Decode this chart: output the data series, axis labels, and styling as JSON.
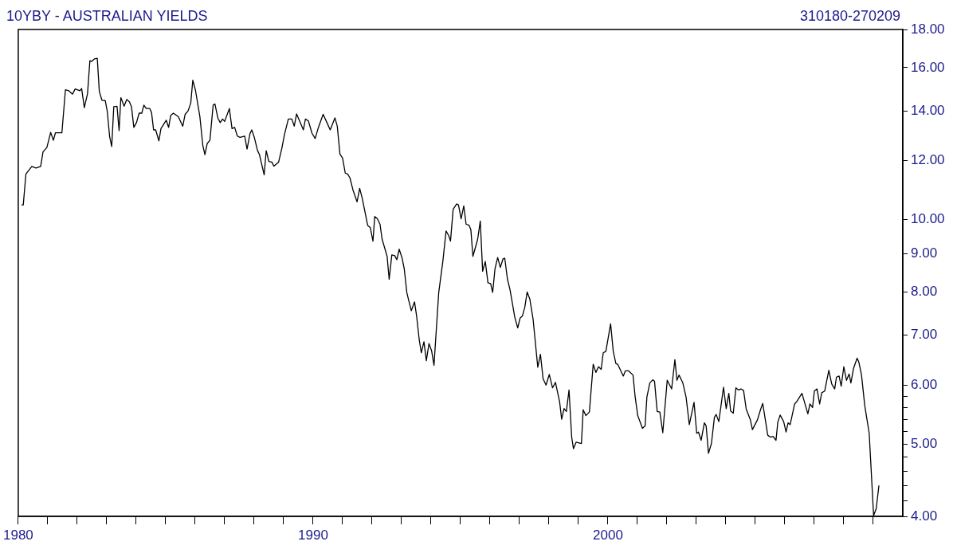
{
  "chart_data": {
    "type": "line",
    "title": "10YBY - AUSTRALIAN YIELDS",
    "subtitle": "310180-270209",
    "color": "#000000",
    "log": "y",
    "xlim": [
      1980,
      2010
    ],
    "xticks": [
      1980,
      {
        "value": 1981,
        "label": null
      },
      {
        "value": 1982,
        "label": null
      },
      {
        "value": 1983,
        "label": null
      },
      {
        "value": 1984,
        "label": null
      },
      {
        "value": 1985,
        "label": null
      },
      {
        "value": 1986,
        "label": null
      },
      {
        "value": 1987,
        "label": null
      },
      {
        "value": 1988,
        "label": null
      },
      {
        "value": 1989,
        "label": null
      },
      1990,
      {
        "value": 1991,
        "label": null
      },
      {
        "value": 1992,
        "label": null
      },
      {
        "value": 1993,
        "label": null
      },
      {
        "value": 1994,
        "label": null
      },
      {
        "value": 1995,
        "label": null
      },
      {
        "value": 1996,
        "label": null
      },
      {
        "value": 1997,
        "label": null
      },
      {
        "value": 1998,
        "label": null
      },
      {
        "value": 1999,
        "label": null
      },
      2000,
      {
        "value": 2001,
        "label": null
      },
      {
        "value": 2002,
        "label": null
      },
      {
        "value": 2003,
        "label": null
      },
      {
        "value": 2004,
        "label": null
      },
      {
        "value": 2005,
        "label": null
      },
      {
        "value": 2006,
        "label": null
      },
      {
        "value": 2007,
        "label": null
      },
      {
        "value": 2008,
        "label": null
      },
      {
        "value": 2009,
        "label": null
      }
    ],
    "ylim": [
      4,
      18
    ],
    "yticks": [
      {
        "value": 4,
        "label": "4.00"
      },
      {
        "value": 4.2,
        "label": null
      },
      {
        "value": 4.4,
        "label": null
      },
      {
        "value": 4.6,
        "label": null
      },
      {
        "value": 4.8,
        "label": null
      },
      {
        "value": 5,
        "label": "5.00"
      },
      {
        "value": 5.2,
        "label": null
      },
      {
        "value": 5.4,
        "label": null
      },
      {
        "value": 5.6,
        "label": null
      },
      {
        "value": 5.8,
        "label": null
      },
      {
        "value": 6,
        "label": "6.00"
      },
      {
        "value": 7,
        "label": "7.00"
      },
      {
        "value": 8,
        "label": "8.00"
      },
      {
        "value": 9,
        "label": "9.00"
      },
      {
        "value": 10,
        "label": "10.00"
      },
      {
        "value": 12,
        "label": "12.00"
      },
      {
        "value": 14,
        "label": "14.00"
      },
      {
        "value": 16,
        "label": "16.00"
      },
      {
        "value": 18,
        "label": "18.00"
      }
    ],
    "x": [
      1980.11,
      1980.17,
      1980.26,
      1980.46,
      1980.6,
      1980.76,
      1980.84,
      1980.97,
      1981.1,
      1981.19,
      1981.26,
      1981.48,
      1981.6,
      1981.71,
      1981.84,
      1981.93,
      1982.09,
      1982.15,
      1982.24,
      1982.35,
      1982.43,
      1982.48,
      1982.59,
      1982.68,
      1982.75,
      1982.84,
      1982.95,
      1983.02,
      1983.1,
      1983.17,
      1983.24,
      1983.35,
      1983.42,
      1983.48,
      1983.59,
      1983.68,
      1983.77,
      1983.84,
      1983.92,
      1984.01,
      1984.1,
      1984.19,
      1984.26,
      1984.34,
      1984.46,
      1984.52,
      1984.59,
      1984.66,
      1984.77,
      1984.84,
      1985.02,
      1985.1,
      1985.17,
      1985.26,
      1985.43,
      1985.58,
      1985.66,
      1985.76,
      1985.85,
      1985.92,
      1986.01,
      1986.16,
      1986.26,
      1986.33,
      1986.41,
      1986.5,
      1986.61,
      1986.67,
      1986.77,
      1986.85,
      1986.93,
      1987.0,
      1987.16,
      1987.25,
      1987.34,
      1987.43,
      1987.52,
      1987.68,
      1987.76,
      1987.86,
      1987.92,
      1988.01,
      1988.11,
      1988.18,
      1988.34,
      1988.41,
      1988.5,
      1988.6,
      1988.67,
      1988.83,
      1988.94,
      1989.03,
      1989.16,
      1989.28,
      1989.36,
      1989.44,
      1989.67,
      1989.74,
      1989.84,
      1989.96,
      1990.07,
      1990.18,
      1990.34,
      1990.47,
      1990.58,
      1990.74,
      1990.82,
      1990.91,
      1991.0,
      1991.09,
      1991.17,
      1991.25,
      1991.35,
      1991.49,
      1991.58,
      1991.67,
      1991.85,
      1991.94,
      1992.03,
      1992.09,
      1992.18,
      1992.27,
      1992.34,
      1992.51,
      1992.58,
      1992.67,
      1992.77,
      1992.84,
      1992.92,
      1993.02,
      1993.09,
      1993.18,
      1993.24,
      1993.33,
      1993.44,
      1993.51,
      1993.6,
      1993.67,
      1993.76,
      1993.84,
      1993.93,
      1994.02,
      1994.1,
      1994.26,
      1994.4,
      1994.51,
      1994.6,
      1994.66,
      1994.75,
      1994.87,
      1994.93,
      1995.02,
      1995.11,
      1995.19,
      1995.29,
      1995.35,
      1995.42,
      1995.58,
      1995.67,
      1995.75,
      1995.84,
      1995.93,
      1996.02,
      1996.09,
      1996.17,
      1996.26,
      1996.35,
      1996.44,
      1996.5,
      1996.59,
      1996.68,
      1996.84,
      1996.94,
      1997.02,
      1997.1,
      1997.18,
      1997.26,
      1997.35,
      1997.46,
      1997.62,
      1997.71,
      1997.8,
      1997.9,
      1998.01,
      1998.12,
      1998.22,
      1998.36,
      1998.43,
      1998.51,
      1998.59,
      1998.68,
      1998.77,
      1998.83,
      1998.92,
      1999.1,
      1999.16,
      1999.25,
      1999.37,
      1999.5,
      1999.59,
      1999.68,
      1999.77,
      1999.84,
      1999.93,
      2000.09,
      2000.18,
      2000.27,
      2000.33,
      2000.52,
      2000.59,
      2000.7,
      2000.85,
      2000.92,
      2001.01,
      2001.17,
      2001.26,
      2001.32,
      2001.42,
      2001.52,
      2001.58,
      2001.67,
      2001.76,
      2001.86,
      2002.01,
      2002.16,
      2002.27,
      2002.34,
      2002.41,
      2002.54,
      2002.65,
      2002.76,
      2002.92,
      2003.01,
      2003.07,
      2003.16,
      2003.27,
      2003.33,
      2003.41,
      2003.51,
      2003.61,
      2003.67,
      2003.76,
      2003.92,
      2004.01,
      2004.1,
      2004.16,
      2004.25,
      2004.34,
      2004.43,
      2004.51,
      2004.6,
      2004.69,
      2004.83,
      2004.9,
      2005.07,
      2005.18,
      2005.25,
      2005.42,
      2005.51,
      2005.6,
      2005.7,
      2005.76,
      2005.84,
      2005.96,
      2006.04,
      2006.11,
      2006.18,
      2006.33,
      2006.4,
      2006.58,
      2006.78,
      2006.85,
      2006.94,
      2007.0,
      2007.09,
      2007.18,
      2007.25,
      2007.35,
      2007.49,
      2007.59,
      2007.69,
      2007.75,
      2007.84,
      2007.91,
      2008.0,
      2008.09,
      2008.18,
      2008.24,
      2008.33,
      2008.45,
      2008.51,
      2008.6,
      2008.71,
      2008.86,
      2009.01,
      2009.1,
      2009.19
    ],
    "values": [
      10.47,
      10.47,
      11.52,
      11.79,
      11.73,
      11.79,
      12.33,
      12.5,
      13.1,
      12.78,
      13.08,
      13.08,
      14.94,
      14.9,
      14.74,
      14.98,
      14.9,
      15.0,
      14.14,
      14.77,
      16.35,
      16.3,
      16.44,
      16.47,
      14.86,
      14.46,
      14.45,
      13.97,
      12.92,
      12.54,
      14.18,
      14.2,
      13.17,
      14.58,
      14.2,
      14.5,
      14.4,
      14.18,
      13.3,
      13.5,
      13.9,
      13.9,
      14.25,
      14.1,
      14.1,
      13.93,
      13.2,
      13.2,
      12.76,
      13.25,
      13.6,
      13.3,
      13.8,
      13.9,
      13.75,
      13.35,
      13.85,
      14.0,
      14.34,
      15.39,
      14.92,
      13.75,
      12.58,
      12.23,
      12.66,
      12.78,
      14.25,
      14.3,
      13.69,
      13.5,
      13.65,
      13.55,
      14.1,
      13.25,
      13.3,
      12.95,
      12.9,
      12.95,
      12.44,
      13.05,
      13.2,
      12.88,
      12.4,
      12.23,
      11.49,
      12.38,
      11.97,
      11.95,
      11.8,
      11.95,
      12.47,
      13.02,
      13.65,
      13.65,
      13.35,
      13.87,
      13.2,
      13.65,
      13.57,
      13.07,
      12.85,
      13.3,
      13.85,
      13.5,
      13.2,
      13.7,
      13.35,
      12.25,
      12.1,
      11.55,
      11.52,
      11.38,
      10.97,
      10.57,
      11.02,
      10.67,
      9.83,
      9.76,
      9.36,
      10.1,
      10.03,
      9.86,
      9.42,
      8.93,
      8.32,
      8.97,
      8.95,
      8.84,
      9.13,
      8.88,
      8.6,
      7.98,
      7.8,
      7.55,
      7.76,
      7.43,
      6.9,
      6.63,
      6.86,
      6.47,
      6.82,
      6.67,
      6.38,
      7.98,
      8.79,
      9.66,
      9.52,
      9.36,
      10.33,
      10.5,
      10.47,
      10.03,
      10.44,
      9.86,
      9.83,
      9.7,
      8.93,
      9.41,
      9.96,
      8.53,
      8.79,
      8.23,
      8.21,
      7.99,
      8.6,
      8.9,
      8.63,
      8.86,
      8.88,
      8.33,
      8.05,
      7.4,
      7.16,
      7.38,
      7.43,
      7.63,
      8.0,
      7.83,
      7.36,
      6.34,
      6.6,
      6.12,
      6.0,
      6.2,
      5.95,
      6.05,
      5.7,
      5.4,
      5.58,
      5.53,
      5.91,
      5.11,
      4.93,
      5.03,
      5.01,
      5.56,
      5.46,
      5.52,
      6.4,
      6.24,
      6.35,
      6.3,
      6.63,
      6.66,
      7.25,
      6.66,
      6.41,
      6.4,
      6.17,
      6.27,
      6.27,
      6.19,
      5.8,
      5.46,
      5.25,
      5.29,
      5.78,
      6.04,
      6.1,
      6.07,
      5.53,
      5.52,
      5.18,
      6.09,
      5.93,
      6.49,
      6.09,
      6.19,
      6.04,
      5.78,
      5.31,
      5.69,
      5.17,
      5.19,
      5.06,
      5.34,
      5.29,
      4.86,
      5.01,
      5.43,
      5.48,
      5.36,
      5.96,
      5.58,
      5.85,
      5.54,
      5.5,
      5.95,
      5.91,
      5.93,
      5.9,
      5.57,
      5.39,
      5.23,
      5.39,
      5.57,
      5.67,
      5.14,
      5.11,
      5.12,
      5.06,
      5.35,
      5.47,
      5.36,
      5.19,
      5.34,
      5.31,
      5.66,
      5.7,
      5.85,
      5.49,
      5.66,
      5.6,
      5.89,
      5.93,
      5.66,
      5.86,
      5.89,
      6.28,
      6.02,
      5.93,
      6.15,
      6.17,
      5.98,
      6.35,
      6.09,
      6.21,
      6.04,
      6.32,
      6.52,
      6.44,
      6.19,
      5.63,
      5.17,
      4.01,
      4.1,
      4.4
    ]
  }
}
